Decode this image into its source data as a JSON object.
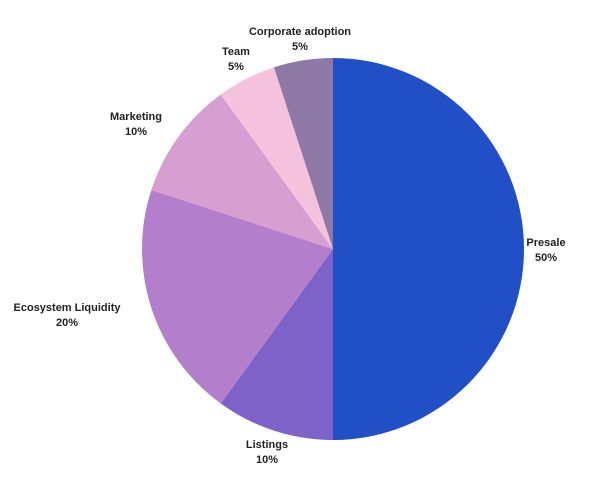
{
  "chart_data": {
    "type": "pie",
    "title": "",
    "start": "top",
    "direction": "clockwise",
    "slices": [
      {
        "label": "Presale",
        "value": 50,
        "value_label": "50%",
        "color": "#2150c6"
      },
      {
        "label": "Listings",
        "value": 10,
        "value_label": "10%",
        "color": "#7d62c8"
      },
      {
        "label": "Ecosystem Liquidity",
        "value": 20,
        "value_label": "20%",
        "color": "#b37ecb"
      },
      {
        "label": "Marketing",
        "value": 10,
        "value_label": "10%",
        "color": "#d79fd1"
      },
      {
        "label": "Team",
        "value": 5,
        "value_label": "5%",
        "color": "#f5c2de"
      },
      {
        "label": "Corporate adoption",
        "value": 5,
        "value_label": "5%",
        "color": "#8d78a6"
      }
    ]
  }
}
